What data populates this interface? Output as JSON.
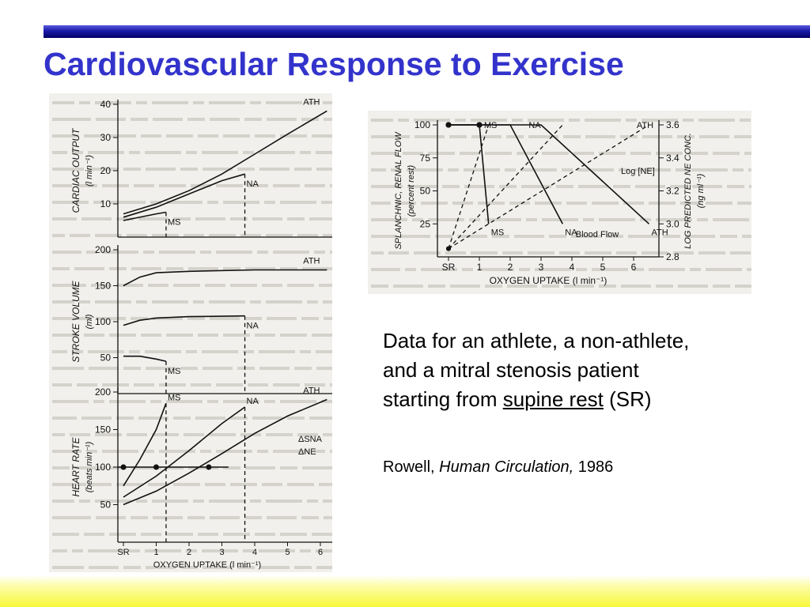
{
  "slide": {
    "title": "Cardiovascular Response to Exercise",
    "caption": {
      "line1": "Data for an athlete, a non-athlete,",
      "line2": "and a mitral stenosis patient",
      "line3_pre": "starting from ",
      "line3_underlined": "supine rest",
      "line3_post": " (SR)"
    },
    "citation": {
      "author": "Rowell, ",
      "book": "Human Circulation,",
      "year": " 1986"
    },
    "colors": {
      "title": "#3333cc",
      "top_bar": "#1a1aa8",
      "bottom_bar": "#f7f73a"
    }
  },
  "chart_data": [
    {
      "type": "line",
      "ylabel": "CARDIAC OUTPUT",
      "yunit": "(l min⁻¹)",
      "yticks": [
        "10",
        "20",
        "30",
        "40"
      ],
      "ylim": [
        0,
        40
      ],
      "xlim": [
        0,
        6.5
      ],
      "series": [
        {
          "name": "ATH",
          "x": [
            0,
            1,
            2,
            3,
            4,
            5,
            6.2
          ],
          "y": [
            7,
            10,
            14,
            19,
            25,
            31,
            38
          ]
        },
        {
          "name": "NA",
          "x": [
            0,
            1,
            2,
            3,
            3.7
          ],
          "y": [
            6,
            9,
            13,
            17,
            19
          ]
        },
        {
          "name": "MS",
          "x": [
            0,
            1,
            1.3
          ],
          "y": [
            5,
            7,
            7.5
          ]
        }
      ]
    },
    {
      "type": "line",
      "ylabel": "STROKE VOLUME",
      "yunit": "(ml)",
      "yticks": [
        "50",
        "100",
        "150",
        "200"
      ],
      "ylim": [
        0,
        200
      ],
      "xlim": [
        0,
        6.5
      ],
      "series": [
        {
          "name": "ATH",
          "x": [
            0,
            0.5,
            1,
            2,
            4,
            6.2
          ],
          "y": [
            150,
            162,
            168,
            170,
            172,
            172
          ]
        },
        {
          "name": "NA",
          "x": [
            0,
            0.5,
            1,
            2,
            3.7
          ],
          "y": [
            95,
            102,
            105,
            107,
            108
          ]
        },
        {
          "name": "MS",
          "x": [
            0,
            0.5,
            1,
            1.3
          ],
          "y": [
            52,
            52,
            48,
            45
          ]
        }
      ]
    },
    {
      "type": "line",
      "ylabel": "HEART RATE",
      "yunit": "(beats min⁻¹)",
      "yticks": [
        "50",
        "100",
        "150",
        "200"
      ],
      "ylim": [
        0,
        200
      ],
      "xlim": [
        0,
        6.5
      ],
      "x_tick_labels": [
        "SR",
        "1",
        "2",
        "3",
        "4",
        "5",
        "6"
      ],
      "xlabel": "OXYGEN UPTAKE (l min⁻¹)",
      "series": [
        {
          "name": "ATH",
          "x": [
            0,
            1,
            2,
            3,
            4,
            5,
            6.2
          ],
          "y": [
            50,
            68,
            92,
            118,
            145,
            168,
            190
          ]
        },
        {
          "name": "NA",
          "x": [
            0,
            1,
            2,
            3,
            3.7
          ],
          "y": [
            60,
            88,
            122,
            158,
            180
          ]
        },
        {
          "name": "MS",
          "x": [
            0,
            0.5,
            1,
            1.3
          ],
          "y": [
            75,
            110,
            150,
            185
          ]
        }
      ],
      "markers": {
        "name": "ΔSNA",
        "x": [
          0,
          1,
          2.6
        ],
        "y": [
          100,
          100,
          100
        ]
      },
      "legend": [
        "ΔSNA",
        "ΔNE"
      ]
    },
    {
      "type": "line",
      "ylabel": "SPLANCHNIC, RENAL FLOW",
      "yunit": "(percent rest)",
      "yticks": [
        "25",
        "50",
        "75",
        "100"
      ],
      "ylim": [
        0,
        100
      ],
      "y2label": "LOG PREDICTED NE CONC.",
      "y2unit": "(ng ml⁻¹)",
      "y2ticks": [
        "2.8",
        "3.0",
        "3.2",
        "3.4",
        "3.6"
      ],
      "xlim": [
        0,
        6.5
      ],
      "x_tick_labels": [
        "SR",
        "1",
        "2",
        "3",
        "4",
        "5",
        "6"
      ],
      "xlabel": "OXYGEN UPTAKE (l min⁻¹)",
      "annotations": [
        "Blood Flow",
        "Log [NE]"
      ],
      "series": [
        {
          "name": "MS",
          "type": "flow",
          "x": [
            0,
            1,
            1.3
          ],
          "y": [
            100,
            100,
            25
          ]
        },
        {
          "name": "NA",
          "type": "flow",
          "x": [
            0,
            1,
            2,
            3.7
          ],
          "y": [
            100,
            100,
            100,
            25
          ]
        },
        {
          "name": "ATH",
          "type": "flow",
          "x": [
            0,
            1,
            2,
            3,
            6.5
          ],
          "y": [
            100,
            100,
            100,
            100,
            25
          ]
        },
        {
          "name": "MS",
          "type": "log_ne",
          "x": [
            0,
            1.3
          ],
          "y": [
            2.85,
            3.6
          ]
        },
        {
          "name": "NA",
          "type": "log_ne",
          "x": [
            0,
            3.7
          ],
          "y": [
            2.85,
            3.6
          ]
        },
        {
          "name": "ATH",
          "type": "log_ne",
          "x": [
            0,
            6.5
          ],
          "y": [
            2.85,
            3.6
          ]
        }
      ]
    }
  ]
}
